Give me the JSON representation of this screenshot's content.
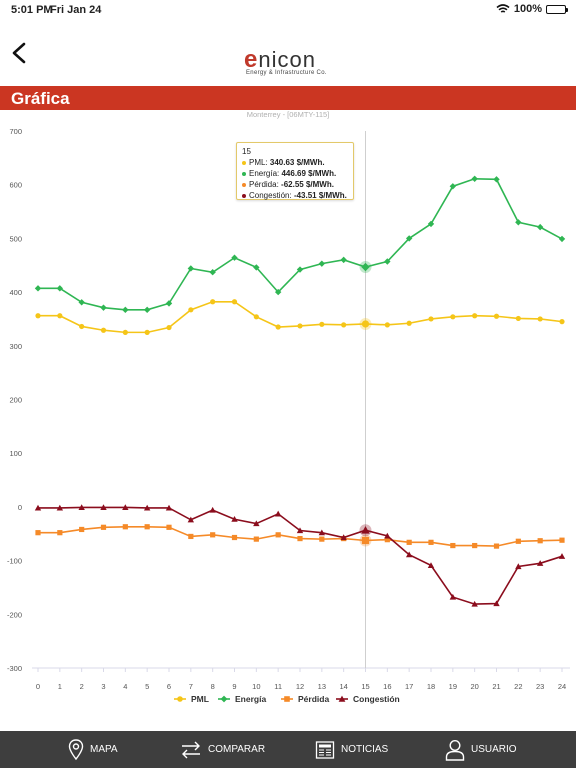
{
  "status_bar": {
    "time": "5:01 PM",
    "date": "Fri Jan 24",
    "battery": "100%",
    "battery_level": 1.0
  },
  "header": {
    "logo_word_rest": "nicon",
    "logo_letter": "e",
    "logo_tagline": "Energy & Infrastructure Co."
  },
  "title_bar": {
    "title": "Gráfica"
  },
  "chart_data": {
    "type": "line",
    "title": "",
    "subtitle": "Monterrey - [06MTY-115]",
    "xlabel": "",
    "ylabel": "",
    "categories": [
      0,
      1,
      2,
      3,
      4,
      5,
      6,
      7,
      8,
      9,
      10,
      11,
      12,
      13,
      14,
      15,
      16,
      17,
      18,
      19,
      20,
      21,
      22,
      23,
      24
    ],
    "ylim": [
      -300,
      700
    ],
    "yticks": [
      -300,
      -200,
      -100,
      0,
      100,
      200,
      300,
      400,
      500,
      600,
      700
    ],
    "legend_position": "bottom",
    "grid": false,
    "series": [
      {
        "name": "PML",
        "color": "#f5c518",
        "marker": "circle",
        "values": [
          356,
          356,
          336,
          329,
          325,
          325,
          334,
          367,
          382,
          382,
          354,
          335,
          337,
          340,
          339,
          340.63,
          339,
          342,
          350,
          354,
          356,
          355,
          351,
          350,
          345
        ]
      },
      {
        "name": "Energía",
        "color": "#2fb653",
        "marker": "diamond",
        "values": [
          407,
          407,
          381,
          371,
          367,
          367,
          379,
          444,
          437,
          464,
          446,
          400,
          442,
          453,
          460,
          446.69,
          457,
          500,
          527,
          597,
          611,
          610,
          530,
          521,
          499
        ]
      },
      {
        "name": "Pérdida",
        "color": "#f58a28",
        "marker": "square",
        "values": [
          -48,
          -48,
          -42,
          -38,
          -37,
          -37,
          -38,
          -55,
          -52,
          -57,
          -60,
          -52,
          -59,
          -60,
          -59,
          -62.55,
          -61,
          -66,
          -66,
          -72,
          -72,
          -73,
          -64,
          -63,
          -62
        ]
      },
      {
        "name": "Congestión",
        "color": "#8b0d1d",
        "marker": "triangle",
        "values": [
          -2,
          -2,
          -1,
          -1,
          -1,
          -2,
          -2,
          -24,
          -6,
          -23,
          -31,
          -13,
          -44,
          -48,
          -57,
          -43.51,
          -54,
          -89,
          -109,
          -168,
          -181,
          -180,
          -111,
          -105,
          -92
        ]
      }
    ],
    "highlight_index": 15,
    "tooltip": {
      "header": "15",
      "rows": [
        {
          "name": "PML",
          "value": "340.63 $/MWh."
        },
        {
          "name": "Energía",
          "value": "446.69 $/MWh."
        },
        {
          "name": "Pérdida",
          "value": "-62.55 $/MWh."
        },
        {
          "name": "Congestión",
          "value": "-43.51 $/MWh."
        }
      ]
    }
  },
  "bottom_nav": [
    {
      "label": "MAPA",
      "icon": "map-pin-icon"
    },
    {
      "label": "COMPARAR",
      "icon": "swap-arrows-icon"
    },
    {
      "label": "NOTICIAS",
      "icon": "newspaper-icon"
    },
    {
      "label": "USUARIO",
      "icon": "user-icon"
    }
  ],
  "colors": {
    "brand_red": "#cb3622",
    "nav_bg": "#3e3e3e"
  }
}
